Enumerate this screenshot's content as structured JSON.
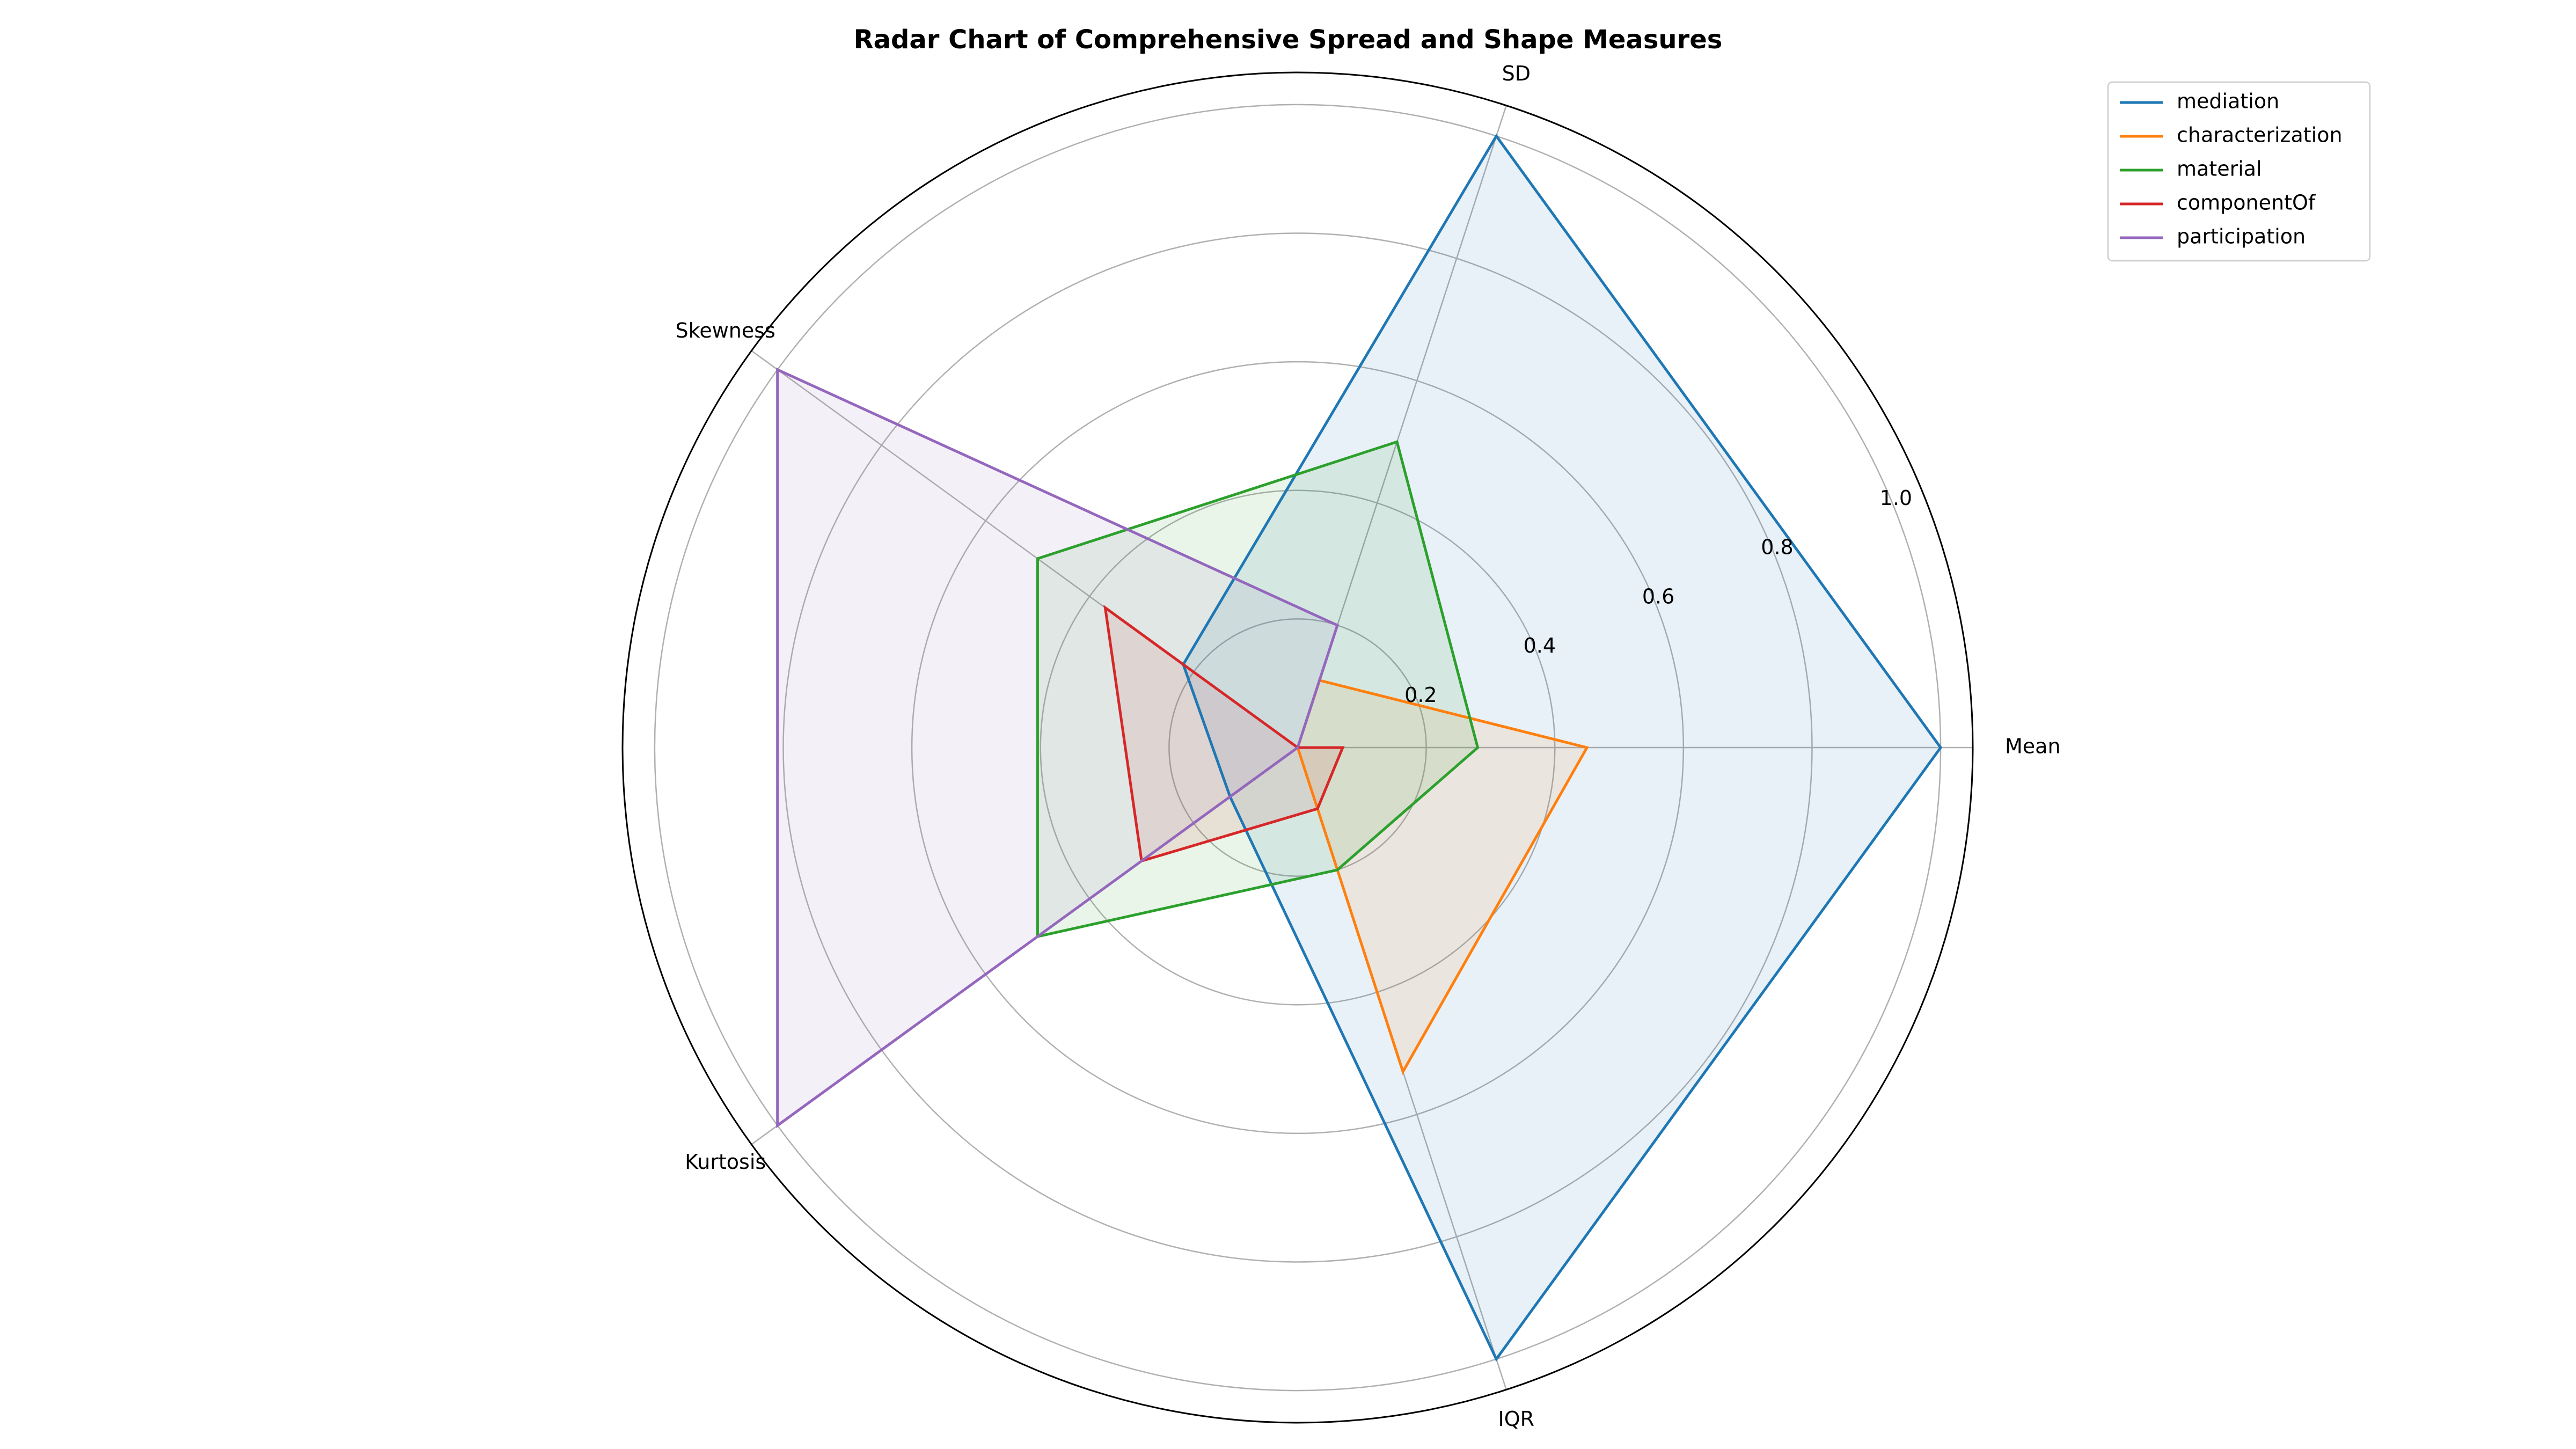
{
  "chart_data": {
    "type": "radar",
    "title": "Radar Chart of Comprehensive Spread and Shape Measures",
    "axes": [
      "Mean",
      "SD",
      "Skewness",
      "Kurtosis",
      "IQR"
    ],
    "rlim": [
      0,
      1.05
    ],
    "rticks": [
      0.2,
      0.4,
      0.6,
      0.8,
      1.0
    ],
    "rtick_labels": [
      "0.2",
      "0.4",
      "0.6",
      "0.8",
      "1.0"
    ],
    "grid": true,
    "legend_position": "top-right",
    "series": [
      {
        "name": "mediation",
        "color": "#1f77b4",
        "values": [
          1.0,
          1.0,
          0.22,
          0.13,
          1.0
        ]
      },
      {
        "name": "characterization",
        "color": "#ff7f0e",
        "values": [
          0.45,
          0.11,
          0.0,
          0.0,
          0.53
        ]
      },
      {
        "name": "material",
        "color": "#2ca02c",
        "values": [
          0.28,
          0.5,
          0.5,
          0.5,
          0.2
        ]
      },
      {
        "name": "componentOf",
        "color": "#d62728",
        "values": [
          0.07,
          0.0,
          0.37,
          0.3,
          0.1
        ]
      },
      {
        "name": "participation",
        "color": "#9467bd",
        "values": [
          0.0,
          0.2,
          1.0,
          1.0,
          0.0
        ]
      }
    ]
  }
}
